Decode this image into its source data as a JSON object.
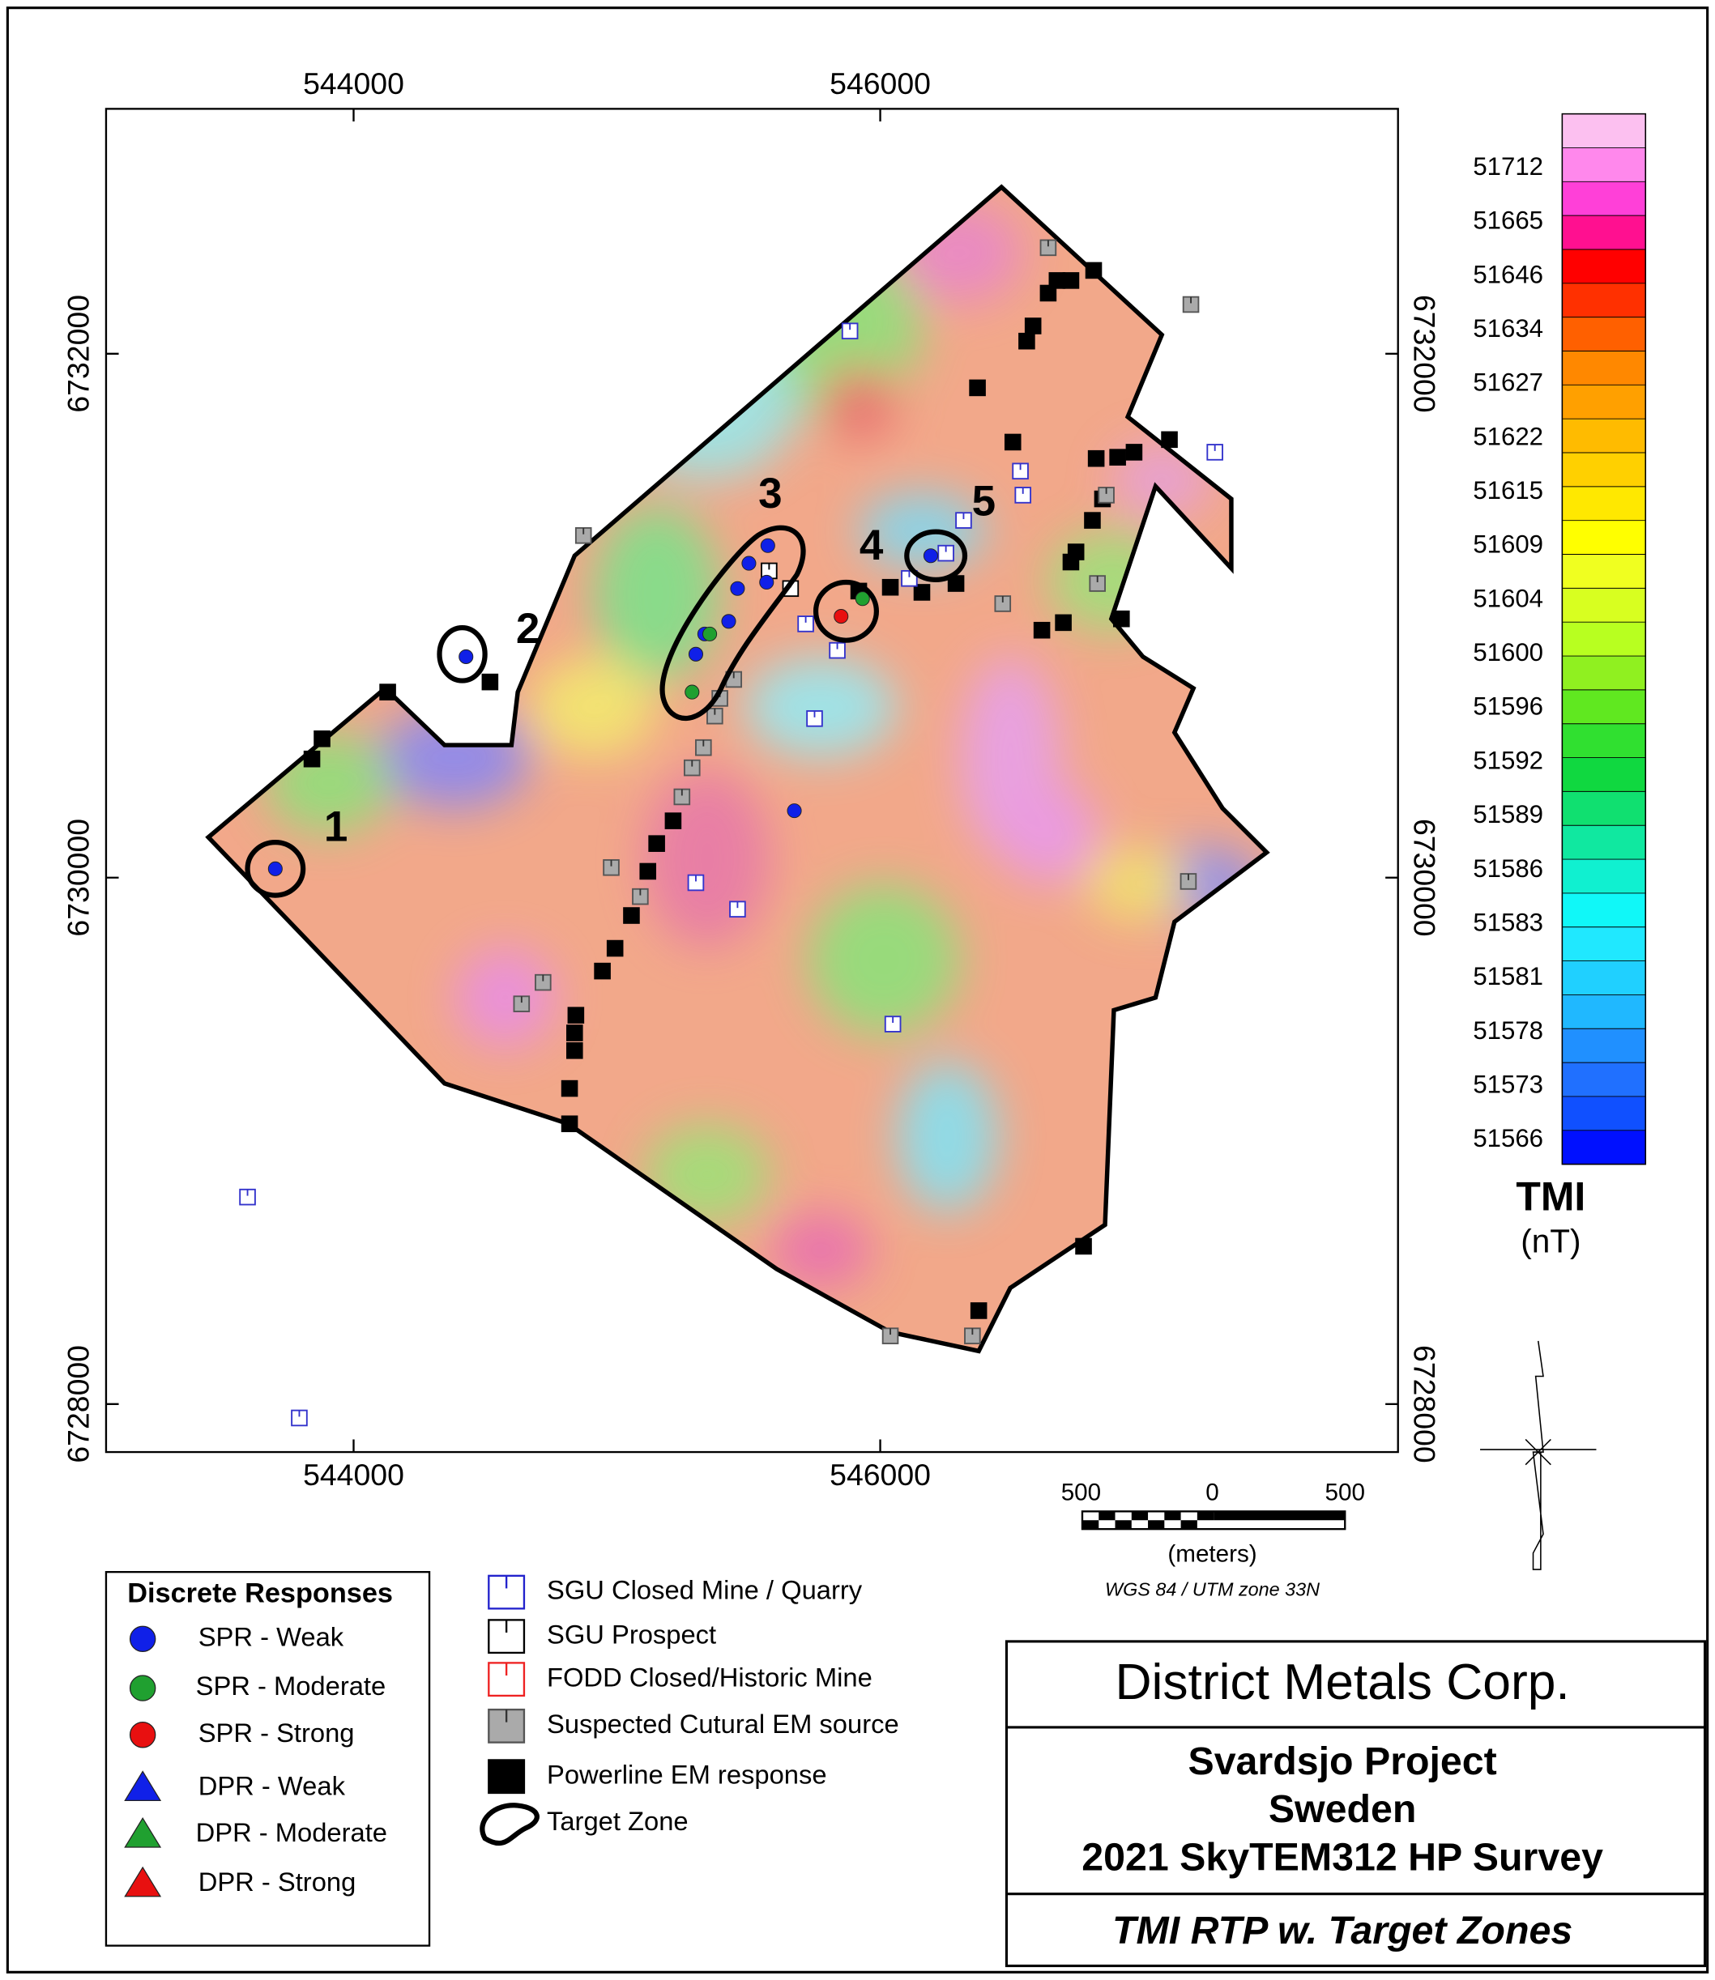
{
  "map": {
    "x_labels_top": [
      "544000",
      "546000"
    ],
    "x_labels_bottom": [
      "544000",
      "546000"
    ],
    "y_labels_left": [
      "6732000",
      "6730000",
      "6728000"
    ],
    "y_labels_right": [
      "6732000",
      "6730000",
      "6728000"
    ],
    "target_zones": [
      "1",
      "2",
      "3",
      "4",
      "5"
    ]
  },
  "color_scale": {
    "labels": [
      "51712",
      "51665",
      "51646",
      "51634",
      "51627",
      "51622",
      "51615",
      "51609",
      "51604",
      "51600",
      "51596",
      "51592",
      "51589",
      "51586",
      "51583",
      "51581",
      "51578",
      "51573",
      "51566"
    ],
    "title": "TMI",
    "unit": "(nT)"
  },
  "scale_bar": {
    "labels": [
      "500",
      "0",
      "500"
    ],
    "unit": "(meters)",
    "projection": "WGS 84 / UTM zone 33N"
  },
  "legend_discrete": {
    "title": "Discrete Responses",
    "items": [
      "SPR - Weak",
      "SPR - Moderate",
      "SPR - Strong",
      "DPR - Weak",
      "DPR - Moderate",
      "DPR - Strong"
    ]
  },
  "legend_features": {
    "items": [
      "SGU Closed Mine / Quarry",
      "SGU Prospect",
      "FODD Closed/Historic Mine",
      "Suspected Cutural EM source",
      "Powerline EM response",
      "Target Zone"
    ]
  },
  "title_block": {
    "company": "District Metals Corp.",
    "lines": [
      "Svardsjo Project",
      "Sweden",
      "2021 SkyTEM312 HP Survey"
    ],
    "subtitle": "TMI RTP w. Target Zones"
  }
}
